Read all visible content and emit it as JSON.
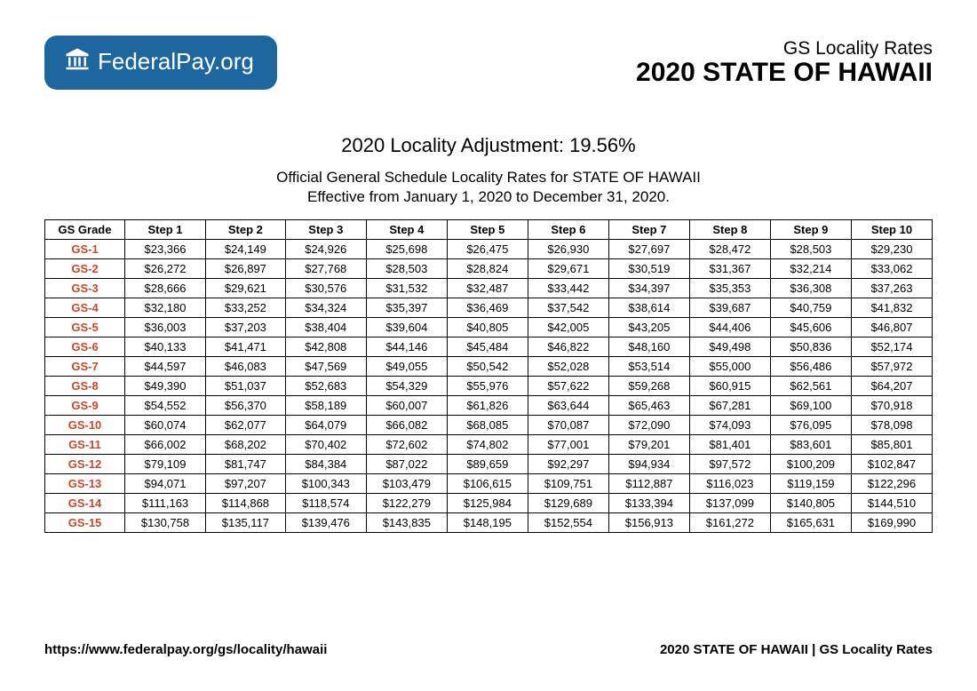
{
  "logo": {
    "brand_strong": "Federal",
    "brand_light": "Pay.org"
  },
  "header": {
    "subtitle": "GS Locality Rates",
    "title": "2020 STATE OF HAWAII"
  },
  "title_block": {
    "adjustment": "2020 Locality Adjustment: 19.56%",
    "line1": "Official General Schedule Locality Rates for STATE OF HAWAII",
    "line2": "Effective from January 1, 2020 to December 31, 2020."
  },
  "table": {
    "columns": [
      "GS Grade",
      "Step 1",
      "Step 2",
      "Step 3",
      "Step 4",
      "Step 5",
      "Step 6",
      "Step 7",
      "Step 8",
      "Step 9",
      "Step 10"
    ],
    "rows": [
      [
        "GS-1",
        "$23,366",
        "$24,149",
        "$24,926",
        "$25,698",
        "$26,475",
        "$26,930",
        "$27,697",
        "$28,472",
        "$28,503",
        "$29,230"
      ],
      [
        "GS-2",
        "$26,272",
        "$26,897",
        "$27,768",
        "$28,503",
        "$28,824",
        "$29,671",
        "$30,519",
        "$31,367",
        "$32,214",
        "$33,062"
      ],
      [
        "GS-3",
        "$28,666",
        "$29,621",
        "$30,576",
        "$31,532",
        "$32,487",
        "$33,442",
        "$34,397",
        "$35,353",
        "$36,308",
        "$37,263"
      ],
      [
        "GS-4",
        "$32,180",
        "$33,252",
        "$34,324",
        "$35,397",
        "$36,469",
        "$37,542",
        "$38,614",
        "$39,687",
        "$40,759",
        "$41,832"
      ],
      [
        "GS-5",
        "$36,003",
        "$37,203",
        "$38,404",
        "$39,604",
        "$40,805",
        "$42,005",
        "$43,205",
        "$44,406",
        "$45,606",
        "$46,807"
      ],
      [
        "GS-6",
        "$40,133",
        "$41,471",
        "$42,808",
        "$44,146",
        "$45,484",
        "$46,822",
        "$48,160",
        "$49,498",
        "$50,836",
        "$52,174"
      ],
      [
        "GS-7",
        "$44,597",
        "$46,083",
        "$47,569",
        "$49,055",
        "$50,542",
        "$52,028",
        "$53,514",
        "$55,000",
        "$56,486",
        "$57,972"
      ],
      [
        "GS-8",
        "$49,390",
        "$51,037",
        "$52,683",
        "$54,329",
        "$55,976",
        "$57,622",
        "$59,268",
        "$60,915",
        "$62,561",
        "$64,207"
      ],
      [
        "GS-9",
        "$54,552",
        "$56,370",
        "$58,189",
        "$60,007",
        "$61,826",
        "$63,644",
        "$65,463",
        "$67,281",
        "$69,100",
        "$70,918"
      ],
      [
        "GS-10",
        "$60,074",
        "$62,077",
        "$64,079",
        "$66,082",
        "$68,085",
        "$70,087",
        "$72,090",
        "$74,093",
        "$76,095",
        "$78,098"
      ],
      [
        "GS-11",
        "$66,002",
        "$68,202",
        "$70,402",
        "$72,602",
        "$74,802",
        "$77,001",
        "$79,201",
        "$81,401",
        "$83,601",
        "$85,801"
      ],
      [
        "GS-12",
        "$79,109",
        "$81,747",
        "$84,384",
        "$87,022",
        "$89,659",
        "$92,297",
        "$94,934",
        "$97,572",
        "$100,209",
        "$102,847"
      ],
      [
        "GS-13",
        "$94,071",
        "$97,207",
        "$100,343",
        "$103,479",
        "$106,615",
        "$109,751",
        "$112,887",
        "$116,023",
        "$119,159",
        "$122,296"
      ],
      [
        "GS-14",
        "$111,163",
        "$114,868",
        "$118,574",
        "$122,279",
        "$125,984",
        "$129,689",
        "$133,394",
        "$137,099",
        "$140,805",
        "$144,510"
      ],
      [
        "GS-15",
        "$130,758",
        "$135,117",
        "$139,476",
        "$143,835",
        "$148,195",
        "$152,554",
        "$156,913",
        "$161,272",
        "$165,631",
        "$169,990"
      ]
    ]
  },
  "footer": {
    "url": "https://www.federalpay.org/gs/locality/hawaii",
    "right": "2020 STATE OF HAWAII | GS Locality Rates"
  },
  "colors": {
    "badge_bg": "#1d679e",
    "grade_color": "#c7492b",
    "border": "#000000"
  }
}
